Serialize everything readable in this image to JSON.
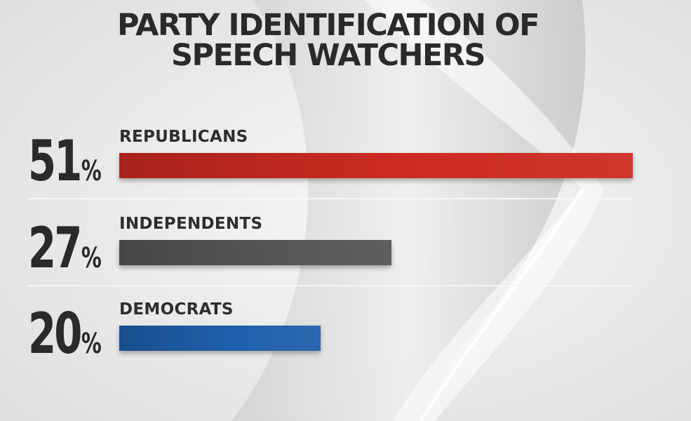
{
  "chart_data": {
    "type": "bar",
    "orientation": "horizontal",
    "title_lines": [
      "PARTY IDENTIFICATION OF",
      "SPEECH WATCHERS"
    ],
    "categories": [
      "REPUBLICANS",
      "INDEPENDENTS",
      "DEMOCRATS"
    ],
    "values": [
      51,
      27,
      20
    ],
    "value_labels": [
      "51",
      "27",
      "20"
    ],
    "unit": "%",
    "colors": [
      "#cc2b22",
      "#555555",
      "#1f5fab"
    ],
    "xlim": [
      0,
      51
    ],
    "grid": false,
    "legend": "none"
  }
}
